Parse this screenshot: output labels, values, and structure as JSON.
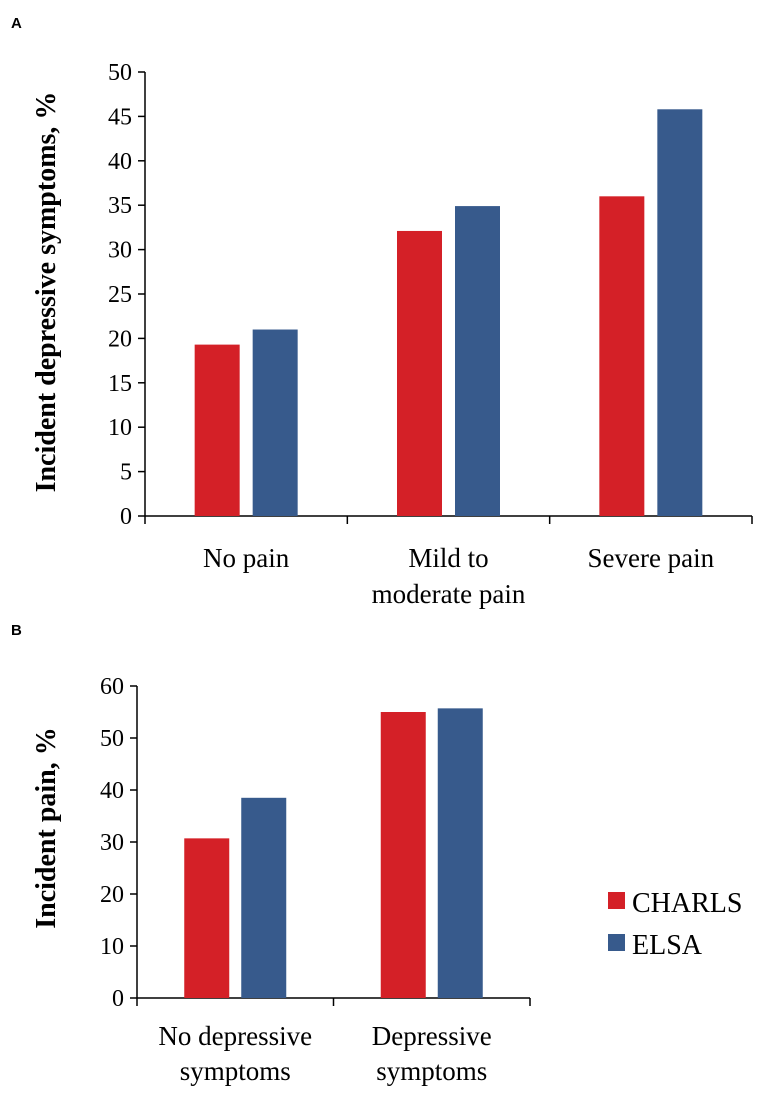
{
  "chart_data": [
    {
      "panel": "A",
      "type": "bar",
      "ylabel": "Incident depressive symptoms, %",
      "ylim": [
        0,
        50
      ],
      "yticks": [
        0,
        5,
        10,
        15,
        20,
        25,
        30,
        35,
        40,
        45,
        50
      ],
      "categories": [
        [
          "No pain"
        ],
        [
          "Mild to",
          "moderate pain"
        ],
        [
          "Severe pain"
        ]
      ],
      "series": [
        {
          "name": "CHARLS",
          "values": [
            19.3,
            32.1,
            36.0
          ]
        },
        {
          "name": "ELSA",
          "values": [
            21.0,
            34.9,
            45.8
          ]
        }
      ]
    },
    {
      "panel": "B",
      "type": "bar",
      "ylabel": "Incident pain, %",
      "ylim": [
        0,
        60
      ],
      "yticks": [
        0,
        10,
        20,
        30,
        40,
        50,
        60
      ],
      "categories": [
        [
          "No depressive",
          "symptoms"
        ],
        [
          "Depressive",
          "symptoms"
        ]
      ],
      "series": [
        {
          "name": "CHARLS",
          "values": [
            30.7,
            55.0
          ]
        },
        {
          "name": "ELSA",
          "values": [
            38.5,
            55.7
          ]
        }
      ]
    }
  ],
  "colors": {
    "CHARLS": "#d42027",
    "ELSA": "#375a8c"
  },
  "legend": [
    {
      "name": "CHARLS",
      "color": "#d42027"
    },
    {
      "name": "ELSA",
      "color": "#375a8c"
    }
  ]
}
